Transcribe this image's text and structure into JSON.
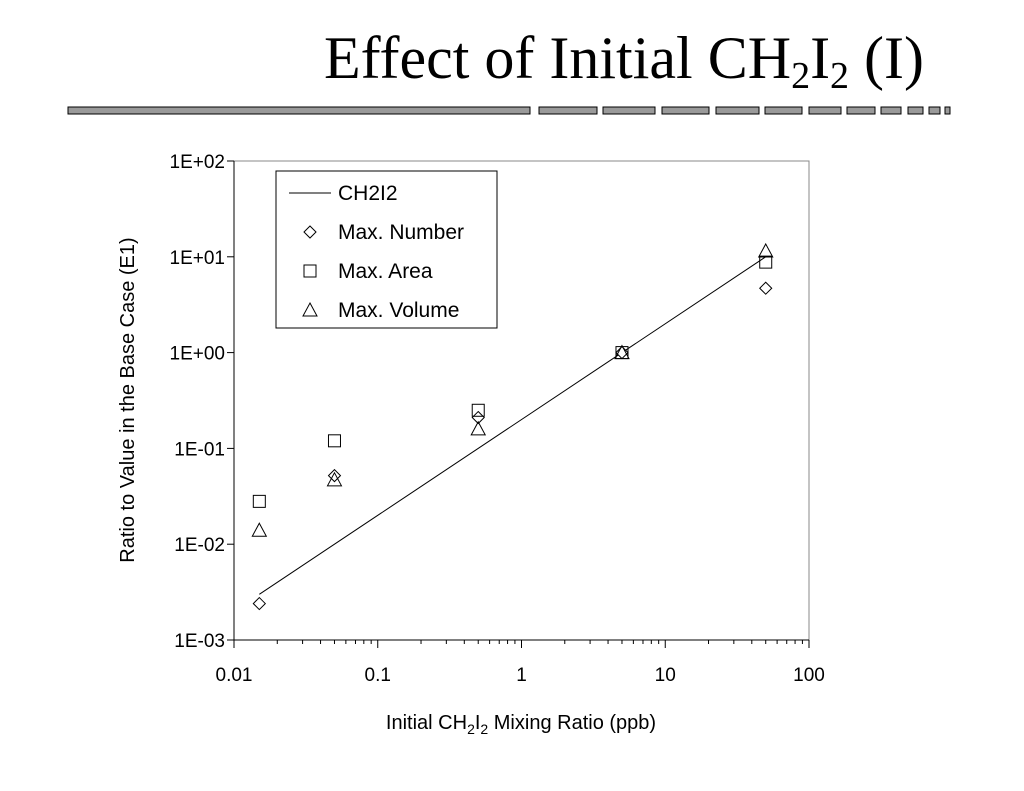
{
  "slide": {
    "title_parts": {
      "pre": "Effect of Initial CH",
      "sub1": "2",
      "mid": "I",
      "sub2": "2",
      "post": " (I)"
    }
  },
  "colors": {
    "rule_fill": "#9a9a9a",
    "rule_stroke": "#000000",
    "axis": "#000000",
    "background": "#ffffff"
  },
  "chart_data": {
    "type": "scatter",
    "xscale": "log",
    "yscale": "log",
    "xlim": [
      0.01,
      100
    ],
    "ylim": [
      0.001,
      100
    ],
    "xticks": [
      {
        "value": 0.01,
        "label": "0.01"
      },
      {
        "value": 0.1,
        "label": "0.1"
      },
      {
        "value": 1,
        "label": "1"
      },
      {
        "value": 10,
        "label": "10"
      },
      {
        "value": 100,
        "label": "100"
      }
    ],
    "yticks": [
      {
        "value": 0.001,
        "label": "1E-03"
      },
      {
        "value": 0.01,
        "label": "1E-02"
      },
      {
        "value": 0.1,
        "label": "1E-01"
      },
      {
        "value": 1,
        "label": "1E+00"
      },
      {
        "value": 10,
        "label": "1E+01"
      },
      {
        "value": 100,
        "label": "1E+02"
      }
    ],
    "xlabel_parts": {
      "pre": "Initial CH",
      "sub1": "2",
      "mid": "I",
      "sub2": "2",
      "post": " Mixing Ratio (ppb)"
    },
    "ylabel": "Ratio to Value in the Base Case (E1)",
    "grid": false,
    "legend_position": "top-left",
    "series": [
      {
        "name": "CH2I2",
        "marker": "line",
        "x": [
          0.015,
          50
        ],
        "y": [
          0.003,
          10
        ]
      },
      {
        "name": "Max. Number",
        "marker": "diamond",
        "x": [
          0.015,
          0.05,
          0.5,
          5,
          50
        ],
        "y": [
          0.0024,
          0.052,
          0.21,
          1.0,
          4.7
        ]
      },
      {
        "name": "Max. Area",
        "marker": "square",
        "x": [
          0.015,
          0.05,
          0.5,
          5,
          50
        ],
        "y": [
          0.028,
          0.12,
          0.25,
          1.0,
          8.8
        ]
      },
      {
        "name": "Max. Volume",
        "marker": "triangle",
        "x": [
          0.015,
          0.05,
          0.5,
          5,
          50
        ],
        "y": [
          0.014,
          0.047,
          0.16,
          1.0,
          11.5
        ]
      }
    ]
  }
}
